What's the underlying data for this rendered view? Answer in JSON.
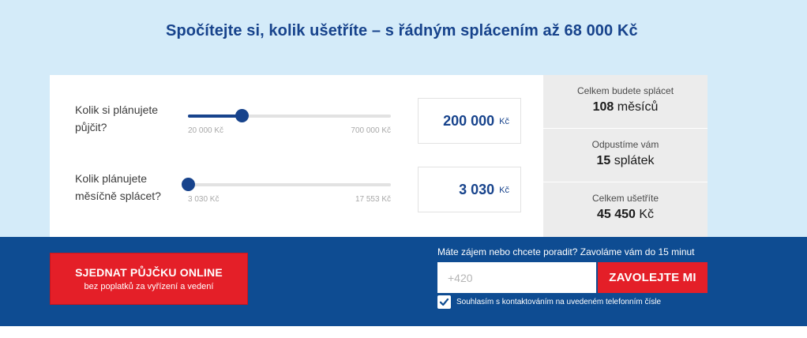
{
  "headline": "Spočítejte si, kolik ušetříte – s řádným splácením až 68 000 Kč",
  "calculator": {
    "loan": {
      "label_line1": "Kolik si plánujete",
      "label_line2": "půjčit?",
      "min_label": "20 000 Kč",
      "max_label": "700 000 Kč",
      "min": 20000,
      "max": 700000,
      "value": 200000,
      "value_display": "200 000",
      "unit": "Kč"
    },
    "payment": {
      "label_line1": "Kolik plánujete",
      "label_line2": "měsíčně splácet?",
      "min_label": "3 030 Kč",
      "max_label": "17 553 Kč",
      "min": 3030,
      "max": 17553,
      "value": 3030,
      "value_display": "3 030",
      "unit": "Kč"
    }
  },
  "summary": {
    "months": {
      "caption": "Celkem budete splácet",
      "value": "108",
      "unit": "měsíců"
    },
    "forgiven": {
      "caption": "Odpustíme vám",
      "value": "15",
      "unit": "splátek"
    },
    "savings": {
      "caption": "Celkem ušetříte",
      "value": "45 450",
      "unit": "Kč"
    }
  },
  "cta": {
    "main_label": "SJEDNAT PŮJČKU ONLINE",
    "sub_label": "bez poplatků za vyřízení a vedení"
  },
  "callback": {
    "title": "Máte zájem nebo chcete poradit? Zavoláme vám do 15 minut",
    "phone_placeholder": "+420",
    "button_label": "ZAVOLEJTE MI",
    "consent_label": "Souhlasím s kontaktováním na uvedeném telefonním čísle",
    "consent_checked": true
  },
  "colors": {
    "brand_blue": "#17438c",
    "band_blue": "#0e4c92",
    "light_blue": "#d4ebf9",
    "accent_red": "#e41f28"
  }
}
